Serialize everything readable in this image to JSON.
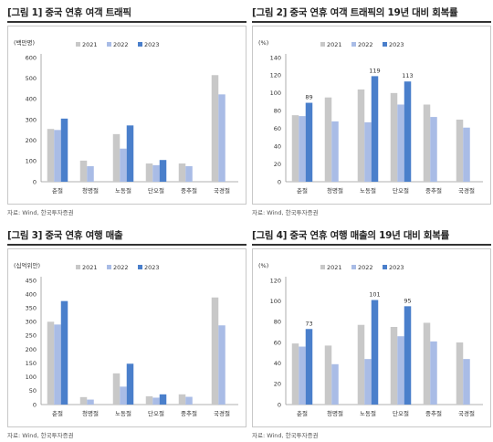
{
  "colors": {
    "c2021": "#c8c8c8",
    "c2022": "#a9bce6",
    "c2023": "#4a7fcb"
  },
  "panels": [
    {
      "title": "[그림 1] 중국 연휴 여객 트래픽",
      "source": "자료: Wind, 한국투자증권"
    },
    {
      "title": "[그림 2] 중국 연휴 여객 트래픽의 19년 대비 회복률",
      "source": "자료: Wind, 한국투자증권"
    },
    {
      "title": "[그림 3] 중국 연휴 여행 매출",
      "source": "자료: Wind, 한국투자증권"
    },
    {
      "title": "[그림 4] 중국 연휴 여행 매출의 19년 대비 회복률",
      "source": "자료: Wind, 한국투자증권"
    }
  ],
  "chart_data": [
    {
      "type": "bar",
      "title": "[그림 1] 중국 연휴 여객 트래픽",
      "unit_label": "(백만명)",
      "categories": [
        "춘절",
        "청명절",
        "노동절",
        "단오절",
        "중추절",
        "국경절"
      ],
      "series": [
        {
          "name": "2021",
          "values": [
            255,
            102,
            230,
            88,
            88,
            515
          ]
        },
        {
          "name": "2022",
          "values": [
            250,
            75,
            160,
            80,
            75,
            422
          ]
        },
        {
          "name": "2023",
          "values": [
            305,
            null,
            272,
            105,
            null,
            null
          ]
        }
      ],
      "ylim": [
        0,
        600
      ],
      "yticks": [
        0,
        100,
        200,
        300,
        400,
        500,
        600
      ],
      "data_labels": [],
      "legend": "top"
    },
    {
      "type": "bar",
      "title": "[그림 2] 중국 연휴 여객 트래픽의 19년 대비 회복률",
      "unit_label": "(%)",
      "categories": [
        "춘절",
        "청명절",
        "노동절",
        "단오절",
        "중추절",
        "국경절"
      ],
      "series": [
        {
          "name": "2021",
          "values": [
            75,
            95,
            104,
            100,
            87,
            70
          ]
        },
        {
          "name": "2022",
          "values": [
            74,
            68,
            67,
            87,
            73,
            61
          ]
        },
        {
          "name": "2023",
          "values": [
            89,
            null,
            119,
            113,
            null,
            null
          ]
        }
      ],
      "ylim": [
        0,
        140
      ],
      "yticks": [
        0,
        20,
        40,
        60,
        80,
        100,
        120,
        140
      ],
      "data_labels": [
        "89",
        "119",
        "113"
      ],
      "legend": "top"
    },
    {
      "type": "bar",
      "title": "[그림 3] 중국 연휴 여행 매출",
      "unit_label": "(십억위안)",
      "categories": [
        "춘절",
        "청명절",
        "노동절",
        "단오절",
        "중추절",
        "국경절"
      ],
      "series": [
        {
          "name": "2021",
          "values": [
            300,
            27,
            113,
            30,
            37,
            388
          ]
        },
        {
          "name": "2022",
          "values": [
            290,
            18,
            65,
            25,
            28,
            287
          ]
        },
        {
          "name": "2023",
          "values": [
            375,
            null,
            148,
            37,
            null,
            null
          ]
        }
      ],
      "ylim": [
        0,
        450
      ],
      "yticks": [
        0,
        50,
        100,
        150,
        200,
        250,
        300,
        350,
        400,
        450
      ],
      "data_labels": [],
      "legend": "top"
    },
    {
      "type": "bar",
      "title": "[그림 4] 중국 연휴 여행 매출의 19년 대비 회복률",
      "unit_label": "(%)",
      "categories": [
        "춘절",
        "청명절",
        "노동절",
        "단오절",
        "중추절",
        "국경절"
      ],
      "series": [
        {
          "name": "2021",
          "values": [
            59,
            57,
            77,
            75,
            79,
            60
          ]
        },
        {
          "name": "2022",
          "values": [
            56,
            39,
            44,
            66,
            61,
            44
          ]
        },
        {
          "name": "2023",
          "values": [
            73,
            null,
            101,
            95,
            null,
            null
          ]
        }
      ],
      "ylim": [
        0,
        120
      ],
      "yticks": [
        0,
        20,
        40,
        60,
        80,
        100,
        120
      ],
      "data_labels": [
        "73",
        "101",
        "95"
      ],
      "legend": "top"
    }
  ]
}
